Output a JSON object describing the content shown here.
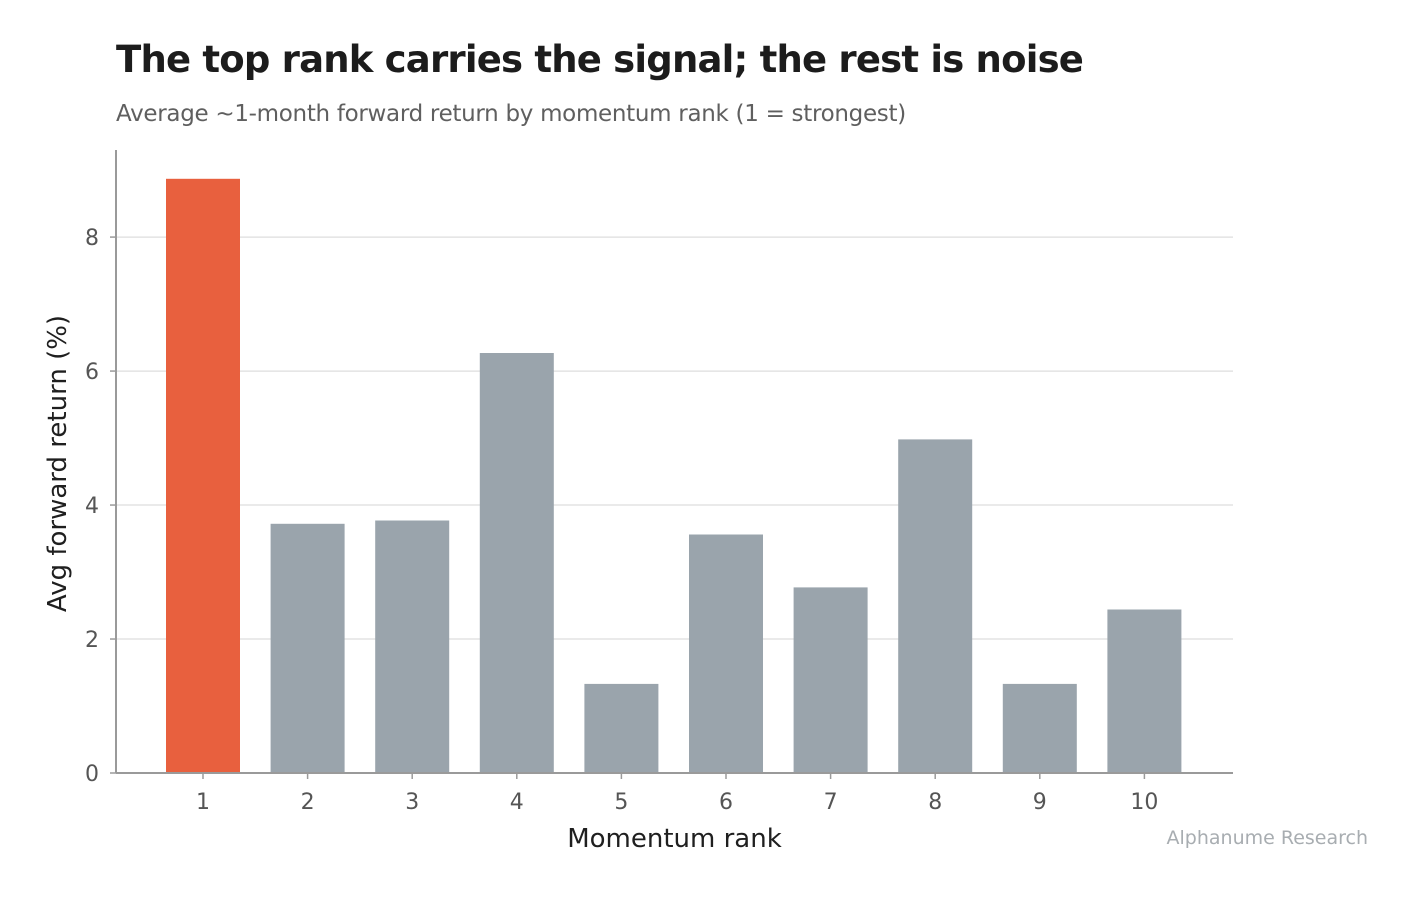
{
  "colors": {
    "highlight": "#e8603e",
    "bar": "#9aa4ac",
    "grid": "#e3e3e3",
    "axis": "#9a9a9a",
    "tick_text": "#555555",
    "axis_label_text": "#1f1f1f"
  },
  "footer": {
    "source": "Alphanume Research"
  },
  "chart_data": {
    "type": "bar",
    "title": "The top rank carries the signal; the rest is noise",
    "subtitle": "Average ~1-month forward return by momentum rank (1 = strongest)",
    "xlabel": "Momentum rank",
    "ylabel": "Avg forward return (%)",
    "categories": [
      "1",
      "2",
      "3",
      "4",
      "5",
      "6",
      "7",
      "8",
      "9",
      "10"
    ],
    "values": [
      8.87,
      3.72,
      3.77,
      6.27,
      1.33,
      3.56,
      2.77,
      4.98,
      1.33,
      2.44
    ],
    "highlight_index": 0,
    "ylim": [
      0,
      9.3
    ],
    "yticks": [
      0,
      2,
      4,
      6,
      8
    ],
    "grid": true,
    "legend": false
  }
}
